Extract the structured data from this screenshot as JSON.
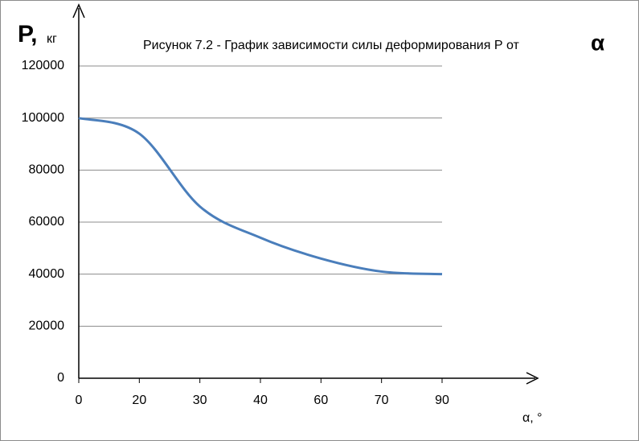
{
  "chart_data": {
    "type": "line",
    "title": "Рисунок 7.2 - График зависимости силы деформирования Р от",
    "title_symbol": "α",
    "y_label": "P,",
    "y_unit": "кг",
    "x_label": "α, °",
    "categories": [
      "0",
      "20",
      "30",
      "40",
      "60",
      "70",
      "90"
    ],
    "series": [
      {
        "name": "P",
        "color": "#4a7ebb",
        "values": [
          100000,
          94000,
          66000,
          54000,
          46000,
          41000,
          40000
        ]
      }
    ],
    "ylim": [
      0,
      120000
    ],
    "yticks": [
      0,
      20000,
      40000,
      60000,
      80000,
      100000,
      120000
    ],
    "grid": true
  }
}
